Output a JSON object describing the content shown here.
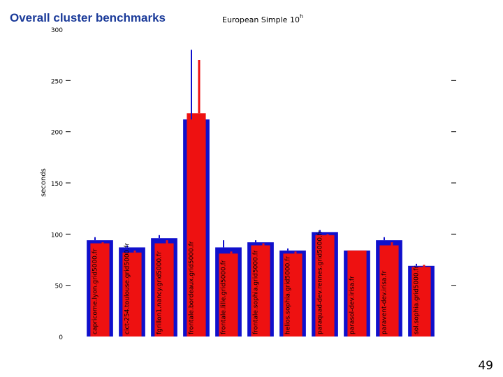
{
  "slide": {
    "title": "Overall cluster benchmarks",
    "page_number": "49"
  },
  "chart_data": {
    "type": "bar",
    "title": "European Simple 10",
    "title_superscript": "h",
    "xlabel": "",
    "ylabel": "seconds",
    "ylim": [
      0,
      300
    ],
    "y_ticks": [
      0,
      50,
      100,
      150,
      200,
      250,
      300
    ],
    "grid": false,
    "categories": [
      "capricorne.lyon.grid5000.fr",
      "cict-254.toulouse.grid5000.fr",
      "fgrillon1.nancy.grid5000.fr",
      "frontale.bordeaux.grid5000.fr",
      "frontale.lille.grid5000.fr",
      "frontale.sophia.grid5000.fr",
      "helios.sophia.grid5000.fr",
      "paraquad-dev.rennes.grid5000.fr",
      "parasol-dev.irisa.fr",
      "paravent-dev.irisa.fr",
      "sol.sophia.grid5000.fr"
    ],
    "series": [
      {
        "values": [
          94,
          87,
          96,
          212,
          87,
          92,
          84,
          102,
          84,
          94,
          69
        ],
        "high": [
          97,
          89,
          99,
          280,
          94,
          94,
          86,
          104,
          84,
          97,
          71
        ]
      },
      {
        "values": [
          91,
          82,
          91,
          218,
          81,
          89,
          81,
          99,
          84,
          89,
          68
        ],
        "high": [
          92,
          84,
          94,
          270,
          83,
          91,
          83,
          100,
          84,
          92,
          70
        ]
      }
    ],
    "colors": {
      "series_1": "#1010cc",
      "series_2": "#ee1111",
      "label_color": "#000000"
    }
  }
}
